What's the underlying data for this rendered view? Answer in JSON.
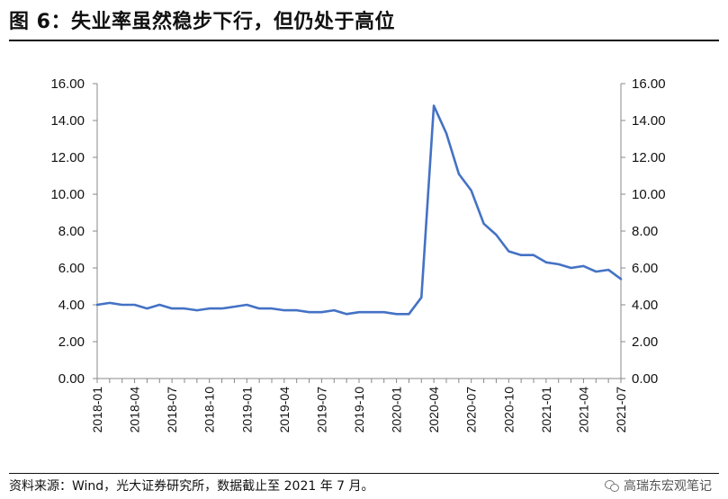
{
  "title": "图 6：失业率虽然稳步下行，但仍处于高位",
  "source": "资料来源：Wind，光大证券研究所，数据截止至 2021 年 7 月。",
  "watermark": {
    "text": "高瑞东宏观笔记",
    "icon": "wechat-icon"
  },
  "colors": {
    "line": "#4472c4",
    "axis": "#888888"
  },
  "chart_data": {
    "type": "line",
    "grid": false,
    "legend": "none",
    "ylim": [
      0,
      16
    ],
    "yticks": [
      "0.00",
      "2.00",
      "4.00",
      "6.00",
      "8.00",
      "10.00",
      "12.00",
      "14.00",
      "16.00"
    ],
    "secondary_yticks": [
      "0.00",
      "2.00",
      "4.00",
      "6.00",
      "8.00",
      "10.00",
      "12.00",
      "14.00",
      "16.00"
    ],
    "xtick_labels": [
      "2018-01",
      "2018-04",
      "2018-07",
      "2018-10",
      "2019-01",
      "2019-04",
      "2019-07",
      "2019-10",
      "2020-01",
      "2020-04",
      "2020-07",
      "2020-10",
      "2021-01",
      "2021-04",
      "2021-07"
    ],
    "x": [
      "2018-01",
      "2018-02",
      "2018-03",
      "2018-04",
      "2018-05",
      "2018-06",
      "2018-07",
      "2018-08",
      "2018-09",
      "2018-10",
      "2018-11",
      "2018-12",
      "2019-01",
      "2019-02",
      "2019-03",
      "2019-04",
      "2019-05",
      "2019-06",
      "2019-07",
      "2019-08",
      "2019-09",
      "2019-10",
      "2019-11",
      "2019-12",
      "2020-01",
      "2020-02",
      "2020-03",
      "2020-04",
      "2020-05",
      "2020-06",
      "2020-07",
      "2020-08",
      "2020-09",
      "2020-10",
      "2020-11",
      "2020-12",
      "2021-01",
      "2021-02",
      "2021-03",
      "2021-04",
      "2021-05",
      "2021-06",
      "2021-07"
    ],
    "series": [
      {
        "values": [
          4.0,
          4.1,
          4.0,
          4.0,
          3.8,
          4.0,
          3.8,
          3.8,
          3.7,
          3.8,
          3.8,
          3.9,
          4.0,
          3.8,
          3.8,
          3.7,
          3.7,
          3.6,
          3.6,
          3.7,
          3.5,
          3.6,
          3.6,
          3.6,
          3.5,
          3.5,
          4.4,
          14.8,
          13.3,
          11.1,
          10.2,
          8.4,
          7.8,
          6.9,
          6.7,
          6.7,
          6.3,
          6.2,
          6.0,
          6.1,
          5.8,
          5.9,
          5.4
        ]
      }
    ]
  }
}
